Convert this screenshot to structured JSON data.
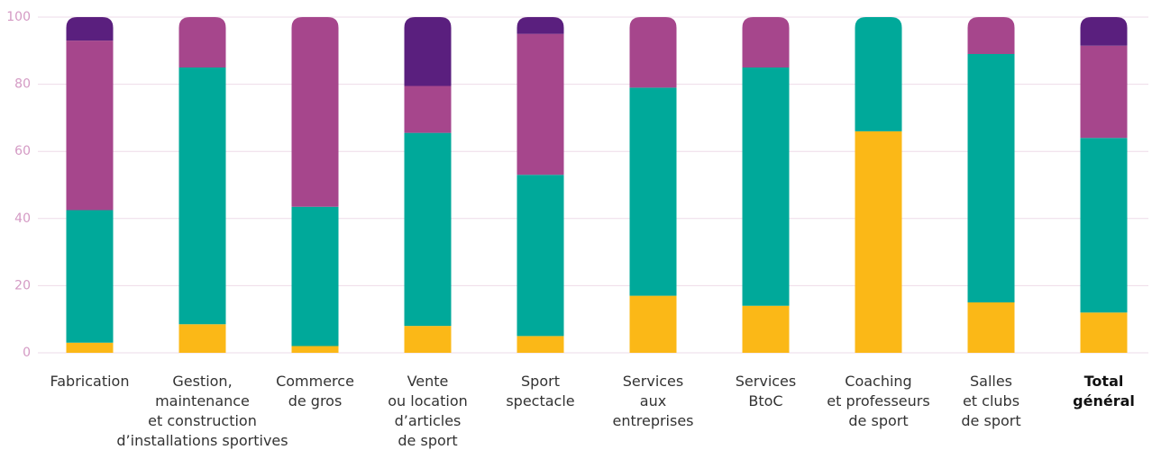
{
  "chart_data": {
    "type": "stacked_bar",
    "categories": [
      "Fabrication",
      "Gestion,\nmaintenance\net construction\nd’installations sportives",
      "Commerce\nde gros",
      "Vente\nou location\nd’articles\nde sport",
      "Sport\nspectacle",
      "Services\naux\nentreprises",
      "Services\nBtoC",
      "Coaching\net professeurs\nde sport",
      "Salles\net clubs\nde sport",
      "Total\ngénéral"
    ],
    "series": [
      {
        "color": "#fbb817",
        "values": [
          3,
          8.5,
          2,
          8,
          5,
          17,
          14,
          66,
          15,
          12
        ]
      },
      {
        "color": "#00a99a",
        "values": [
          39.5,
          76.5,
          41.5,
          57.5,
          48,
          62,
          71,
          34,
          74,
          52
        ]
      },
      {
        "color": "#a6468c",
        "values": [
          50.5,
          15,
          56.5,
          14,
          42,
          21,
          15,
          0,
          11,
          27.5
        ]
      },
      {
        "color": "#5a1f7e",
        "values": [
          7,
          0,
          0,
          20.5,
          5,
          0,
          0,
          0,
          0,
          8.5
        ]
      }
    ],
    "ylim": [
      0,
      100
    ],
    "yticks": [
      0,
      20,
      40,
      60,
      80,
      100
    ],
    "grid": true
  }
}
